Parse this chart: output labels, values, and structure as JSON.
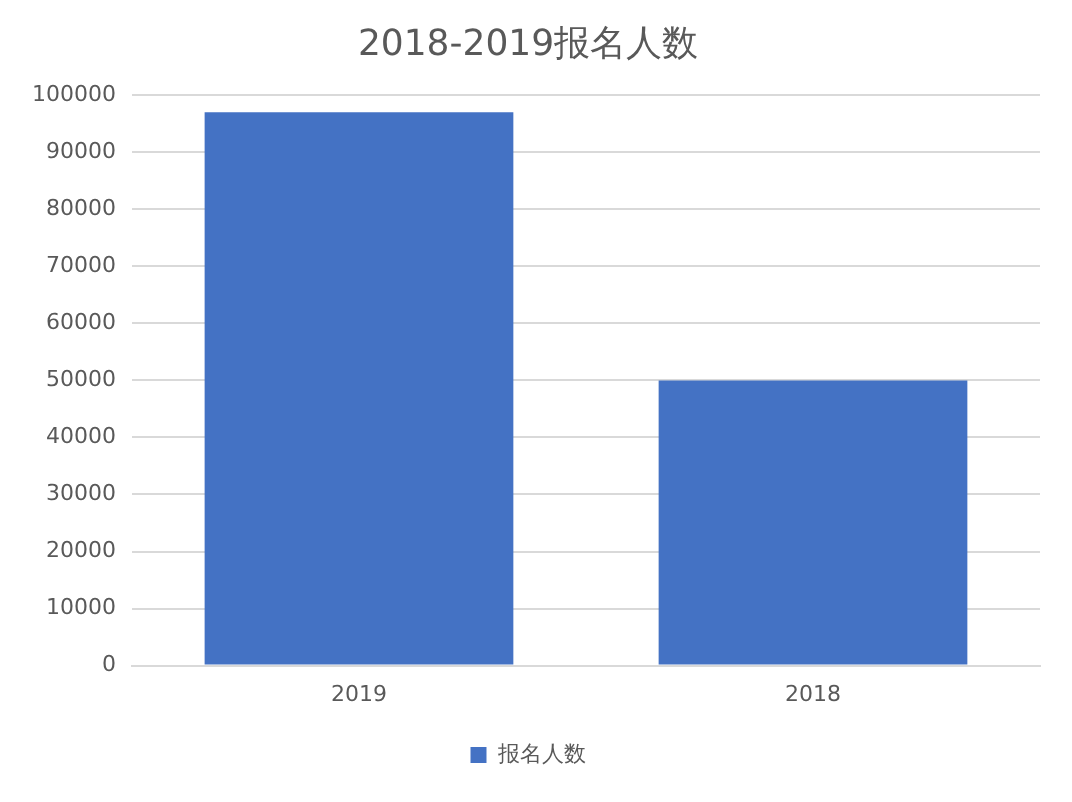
{
  "chart_data": {
    "type": "bar",
    "title": "2018-2019报名人数",
    "categories": [
      "2019",
      "2018"
    ],
    "series": [
      {
        "name": "报名人数",
        "color": "#4472c4",
        "values": [
          97000,
          50000
        ]
      }
    ],
    "ylim": [
      0,
      100000
    ],
    "yticks": [
      0,
      10000,
      20000,
      30000,
      40000,
      50000,
      60000,
      70000,
      80000,
      90000,
      100000
    ],
    "grid": "y",
    "legend": "bottom"
  }
}
